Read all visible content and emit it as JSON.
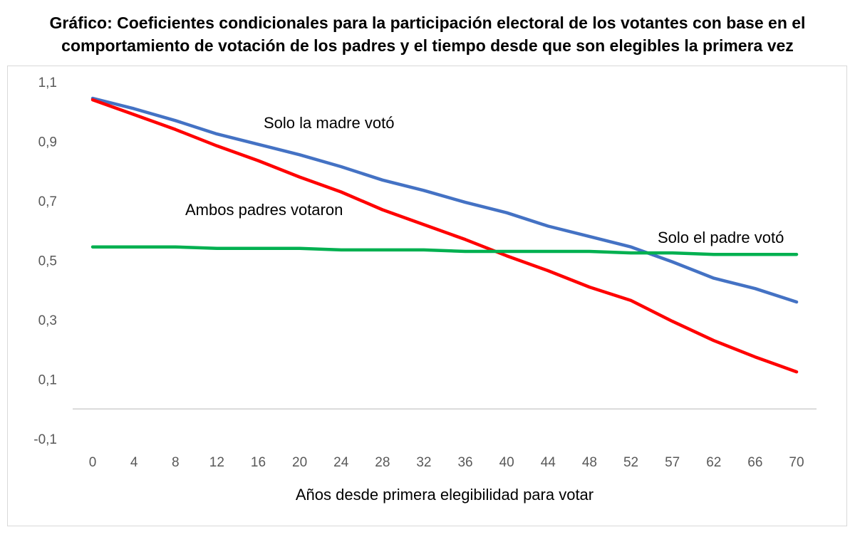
{
  "title_line1": "Gráfico: Coeficientes condicionales para la participación electoral de los votantes con base en el",
  "title_line2": "comportamiento de votación de los padres y el tiempo desde que son elegibles la primera vez",
  "chart_data": {
    "type": "line",
    "xlabel": "Años desde primera elegibilidad para votar",
    "ylabel": "",
    "categories": [
      "0",
      "4",
      "8",
      "12",
      "16",
      "20",
      "24",
      "28",
      "32",
      "36",
      "40",
      "44",
      "48",
      "52",
      "57",
      "62",
      "66",
      "70"
    ],
    "ylim": [
      -0.1,
      1.1
    ],
    "yticks": [
      1.1,
      0.9,
      0.7,
      0.5,
      0.3,
      0.1,
      -0.1
    ],
    "ytick_labels": [
      "1,1",
      "0,9",
      "0,7",
      "0,5",
      "0,3",
      "0,1",
      "-0,1"
    ],
    "grid": false,
    "series": [
      {
        "name": "Solo la madre votó",
        "color": "#4472C4",
        "values": [
          1.045,
          1.01,
          0.97,
          0.925,
          0.89,
          0.855,
          0.815,
          0.77,
          0.735,
          0.695,
          0.66,
          0.615,
          0.58,
          0.545,
          0.495,
          0.44,
          0.405,
          0.36
        ]
      },
      {
        "name": "Ambos padres votaron",
        "color": "#FF0000",
        "values": [
          1.04,
          0.99,
          0.94,
          0.885,
          0.835,
          0.78,
          0.73,
          0.67,
          0.62,
          0.57,
          0.515,
          0.465,
          0.41,
          0.365,
          0.295,
          0.23,
          0.175,
          0.125
        ]
      },
      {
        "name": "Solo el padre votó",
        "color": "#00B050",
        "values": [
          0.545,
          0.545,
          0.545,
          0.54,
          0.54,
          0.54,
          0.535,
          0.535,
          0.535,
          0.53,
          0.53,
          0.53,
          0.53,
          0.525,
          0.525,
          0.52,
          0.52,
          0.52
        ]
      }
    ]
  }
}
